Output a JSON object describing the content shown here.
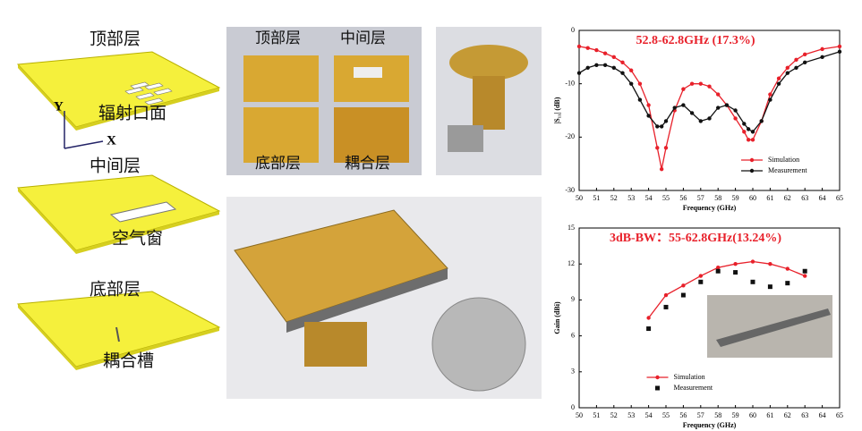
{
  "diagram": {
    "top_layer": "顶部层",
    "radiating_aperture": "辐射口面",
    "axis_y": "Y",
    "axis_x": "X",
    "middle_layer": "中间层",
    "air_window": "空气窗",
    "bottom_layer": "底部层",
    "coupling_slot": "耦合槽"
  },
  "photo": {
    "labels": [
      "顶部层",
      "中间层",
      "底部层",
      "耦合层"
    ]
  },
  "chart_data": [
    {
      "type": "line",
      "annotation": "52.8-62.8GHz (17.3%)",
      "xlabel": "Frequency (GHz)",
      "ylabel": "|S₁₁| (dB)",
      "x": [
        50,
        50.5,
        51,
        51.5,
        52,
        52.5,
        53,
        53.5,
        54,
        54.5,
        54.75,
        55,
        55.5,
        56,
        56.5,
        57,
        57.5,
        58,
        58.5,
        59,
        59.5,
        59.75,
        60,
        60.5,
        61,
        61.5,
        62,
        62.5,
        63,
        64,
        65
      ],
      "series": [
        {
          "name": "Simulation",
          "color": "#e8202a",
          "marker": "circle",
          "line": true,
          "values": [
            -3,
            -3.3,
            -3.7,
            -4.3,
            -5,
            -6,
            -7.5,
            -10,
            -14,
            -22,
            -26,
            -22,
            -15,
            -11,
            -10,
            -10,
            -10.5,
            -12,
            -14,
            -16.5,
            -19,
            -20.5,
            -20.5,
            -17,
            -12,
            -9,
            -7,
            -5.5,
            -4.5,
            -3.5,
            -3
          ]
        },
        {
          "name": "Measurement",
          "color": "#111111",
          "marker": "circle",
          "line": true,
          "values": [
            -8,
            -7,
            -6.5,
            -6.5,
            -7,
            -8,
            -10,
            -13,
            -16,
            -18,
            -18,
            -17,
            -14.5,
            -14,
            -15.5,
            -17,
            -16.5,
            -14.5,
            -14,
            -15,
            -17.5,
            -18.5,
            -19,
            -17,
            -13,
            -10,
            -8,
            -7,
            -6,
            -5,
            -4
          ]
        }
      ],
      "xlim": [
        50,
        65
      ],
      "xticks": [
        50,
        51,
        52,
        53,
        54,
        55,
        56,
        57,
        58,
        59,
        60,
        61,
        62,
        63,
        64,
        65
      ],
      "ylim": [
        -30,
        0
      ],
      "yticks": [
        0,
        -10,
        -20,
        -30
      ],
      "grid": false,
      "legend": "lower right"
    },
    {
      "type": "line",
      "annotation": "3dB-BW：55-62.8GHz(13.24%)",
      "xlabel": "Frequency (GHz)",
      "ylabel": "Gain (dBi)",
      "x": [
        54,
        55,
        56,
        57,
        58,
        59,
        60,
        61,
        62,
        63
      ],
      "series": [
        {
          "name": "Simulation",
          "color": "#e8202a",
          "marker": "circle",
          "line": true,
          "values": [
            7.5,
            9.4,
            10.2,
            11,
            11.7,
            12,
            12.2,
            12,
            11.6,
            11
          ]
        },
        {
          "name": "Measurement",
          "color": "#111111",
          "marker": "square",
          "line": false,
          "values": [
            6.6,
            8.4,
            9.4,
            10.5,
            11.4,
            11.3,
            10.5,
            10.1,
            10.4,
            11.4
          ]
        }
      ],
      "xlim": [
        50,
        65
      ],
      "xticks": [
        50,
        51,
        52,
        53,
        54,
        55,
        56,
        57,
        58,
        59,
        60,
        61,
        62,
        63,
        64,
        65
      ],
      "ylim": [
        0,
        15
      ],
      "yticks": [
        0,
        3,
        6,
        9,
        12,
        15
      ],
      "grid": false,
      "legend": "lower center"
    }
  ]
}
